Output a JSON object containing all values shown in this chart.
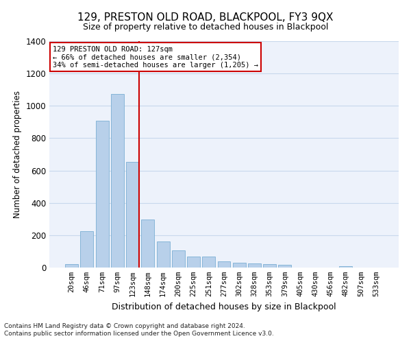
{
  "title": "129, PRESTON OLD ROAD, BLACKPOOL, FY3 9QX",
  "subtitle": "Size of property relative to detached houses in Blackpool",
  "xlabel": "Distribution of detached houses by size in Blackpool",
  "ylabel": "Number of detached properties",
  "footnote1": "Contains HM Land Registry data © Crown copyright and database right 2024.",
  "footnote2": "Contains public sector information licensed under the Open Government Licence v3.0.",
  "bar_labels": [
    "20sqm",
    "46sqm",
    "71sqm",
    "97sqm",
    "123sqm",
    "148sqm",
    "174sqm",
    "200sqm",
    "225sqm",
    "251sqm",
    "277sqm",
    "302sqm",
    "328sqm",
    "353sqm",
    "379sqm",
    "405sqm",
    "430sqm",
    "456sqm",
    "482sqm",
    "507sqm",
    "533sqm"
  ],
  "bar_values": [
    20,
    225,
    910,
    1075,
    655,
    295,
    160,
    105,
    70,
    70,
    38,
    28,
    25,
    22,
    15,
    0,
    0,
    0,
    10,
    0,
    0
  ],
  "bar_color": "#b8d0ea",
  "bar_edgecolor": "#7aaed4",
  "ylim": [
    0,
    1400
  ],
  "yticks": [
    0,
    200,
    400,
    600,
    800,
    1000,
    1200,
    1400
  ],
  "vline_pos": 4.43,
  "annotation_line1": "129 PRESTON OLD ROAD: 127sqm",
  "annotation_line2": "← 66% of detached houses are smaller (2,354)",
  "annotation_line3": "34% of semi-detached houses are larger (1,205) →",
  "vline_color": "#cc0000",
  "annotation_box_edgecolor": "#cc0000",
  "grid_color": "#c8d8ec",
  "background_color": "#edf2fb"
}
